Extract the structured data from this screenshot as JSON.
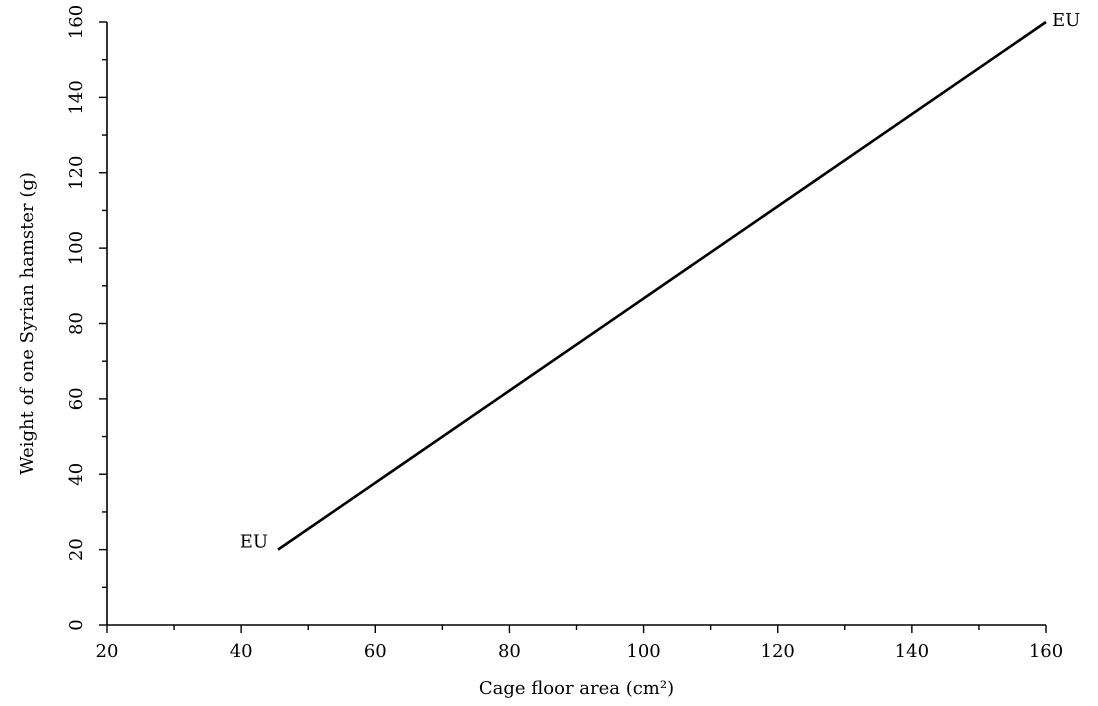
{
  "chart_data": {
    "type": "line",
    "title": "",
    "xlabel": "Cage floor area (cm²)",
    "ylabel": "Weight of one Syrian hamster (g)",
    "xlim": [
      20,
      160
    ],
    "ylim": [
      0,
      160
    ],
    "xticks": [
      20,
      40,
      60,
      80,
      100,
      120,
      140,
      160
    ],
    "yticks": [
      0,
      20,
      40,
      60,
      80,
      100,
      120,
      140,
      160
    ],
    "minor_xticks": [
      30,
      50,
      70,
      90,
      110,
      130,
      150
    ],
    "minor_yticks": [
      10,
      30,
      50,
      70,
      90,
      110,
      130,
      150
    ],
    "grid": false,
    "series": [
      {
        "x": [
          45.5,
          160
        ],
        "y": [
          20,
          160
        ]
      }
    ],
    "annotations": [
      {
        "text": "EU",
        "x": 45.5,
        "y": 20,
        "anchor": "left"
      },
      {
        "text": "EU",
        "x": 160,
        "y": 160,
        "anchor": "right"
      }
    ]
  }
}
